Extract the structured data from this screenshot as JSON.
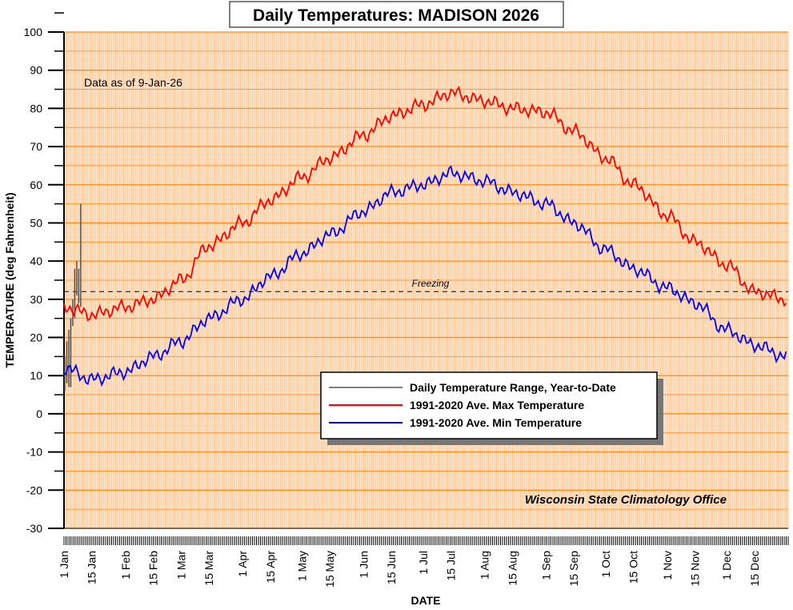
{
  "chart_data": {
    "type": "line",
    "title": "Daily Temperatures: MADISON 2026",
    "xlabel": "DATE",
    "ylabel": "TEMPERATURE (deg Fahrenheit)",
    "ylim": [
      -30,
      100
    ],
    "yticks": [
      100,
      90,
      80,
      70,
      60,
      50,
      40,
      30,
      20,
      10,
      0,
      -10,
      -20,
      -30
    ],
    "xlim_days": [
      1,
      365
    ],
    "grid": true,
    "legend_placement": "center-right",
    "annotation_asof": "Data as of 9-Jan-26",
    "annotation_freezing": "Freezing",
    "freezing_value": 32,
    "credit": "Wisconsin State Climatology Office",
    "xticks": [
      {
        "label": "1 Jan",
        "day": 1
      },
      {
        "label": "15 Jan",
        "day": 15
      },
      {
        "label": "1 Feb",
        "day": 32
      },
      {
        "label": "15 Feb",
        "day": 46
      },
      {
        "label": "1 Mar",
        "day": 60
      },
      {
        "label": "15 Mar",
        "day": 74
      },
      {
        "label": "1 Apr",
        "day": 91
      },
      {
        "label": "15 Apr",
        "day": 105
      },
      {
        "label": "1 May",
        "day": 121
      },
      {
        "label": "15 May",
        "day": 135
      },
      {
        "label": "1 Jun",
        "day": 152
      },
      {
        "label": "15 Jun",
        "day": 166
      },
      {
        "label": "1 Jul",
        "day": 182
      },
      {
        "label": "15 Jul",
        "day": 196
      },
      {
        "label": "1 Aug",
        "day": 213
      },
      {
        "label": "15 Aug",
        "day": 227
      },
      {
        "label": "1 Sep",
        "day": 244
      },
      {
        "label": "15 Sep",
        "day": 258
      },
      {
        "label": "1 Oct",
        "day": 274
      },
      {
        "label": "15 Oct",
        "day": 288
      },
      {
        "label": "1 Nov",
        "day": 305
      },
      {
        "label": "15 Nov",
        "day": 319
      },
      {
        "label": "1 Dec",
        "day": 335
      },
      {
        "label": "15 Dec",
        "day": 349
      }
    ],
    "series": [
      {
        "name": "Daily Temperature Range, Year-to-Date",
        "color": "#555555",
        "day": [
          1,
          2,
          3,
          4,
          5,
          6,
          7,
          8,
          9
        ],
        "low": [
          6,
          8,
          7,
          7,
          23,
          25,
          31,
          29,
          28
        ],
        "high": [
          15,
          19,
          22,
          25,
          30,
          38,
          40,
          38,
          55
        ]
      },
      {
        "name": "1991-2020 Ave. Max Temperature",
        "color": "#ff0000",
        "day": [
          1,
          15,
          32,
          46,
          60,
          74,
          91,
          105,
          121,
          135,
          152,
          166,
          182,
          196,
          213,
          227,
          244,
          258,
          274,
          288,
          305,
          319,
          335,
          349,
          365
        ],
        "value": [
          28,
          26,
          28,
          30,
          35,
          44,
          50,
          56,
          62,
          67,
          73,
          78,
          81,
          84,
          82,
          80,
          79,
          74,
          67,
          60,
          52,
          45,
          39,
          32,
          30
        ]
      },
      {
        "name": "1991-2020 Ave. Min Temperature",
        "color": "#0000ff",
        "day": [
          1,
          15,
          32,
          46,
          60,
          74,
          91,
          105,
          121,
          135,
          152,
          166,
          182,
          196,
          213,
          227,
          244,
          258,
          274,
          288,
          305,
          319,
          335,
          349,
          365
        ],
        "value": [
          12,
          9,
          11,
          15,
          19,
          25,
          30,
          36,
          42,
          47,
          53,
          58,
          60,
          63,
          61,
          58,
          55,
          50,
          43,
          38,
          33,
          29,
          22,
          18,
          15
        ]
      }
    ]
  }
}
